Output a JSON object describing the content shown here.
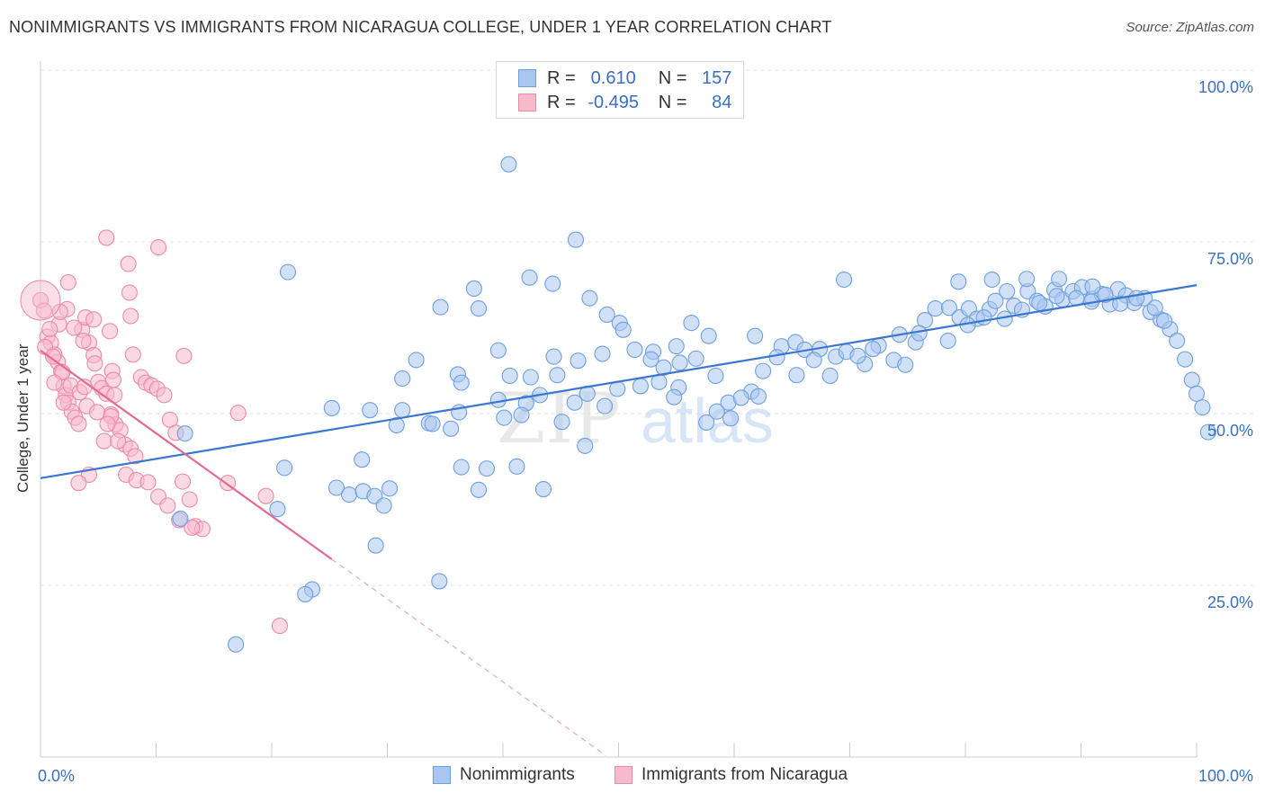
{
  "title": "NONIMMIGRANTS VS IMMIGRANTS FROM NICARAGUA COLLEGE, UNDER 1 YEAR CORRELATION CHART",
  "source": "Source: ZipAtlas.com",
  "watermark": {
    "zip": "ZIP",
    "atlas": "atlas"
  },
  "legend_top": {
    "rows": [
      {
        "r_label": "R =",
        "r_value": "0.610",
        "n_label": "N =",
        "n_value": "157"
      },
      {
        "r_label": "R =",
        "r_value": "-0.495",
        "n_label": "N =",
        "n_value": "84"
      }
    ]
  },
  "legend_bottom": [
    "Nonimmigrants",
    "Immigrants from Nicaragua"
  ],
  "colors": {
    "blue_fill": "#a9c6ef",
    "blue_stroke": "#6f9fe0",
    "blue_line": "#3a77d1",
    "pink_fill": "#f7b9cc",
    "pink_stroke": "#ec8aa8",
    "pink_line": "#e06b93",
    "grid": "#e1e1e1",
    "tick_text": "#3a6fc4"
  },
  "chart_data": {
    "type": "scatter",
    "title": "NONIMMIGRANTS VS IMMIGRANTS FROM NICARAGUA COLLEGE, UNDER 1 YEAR CORRELATION CHART",
    "xlabel": "",
    "ylabel": "College, Under 1 year",
    "xlim": [
      0,
      100
    ],
    "ylim": [
      0,
      100
    ],
    "x_tick_labels": [
      "0.0%",
      "100.0%"
    ],
    "y_tick_labels": [
      "100.0%",
      "75.0%",
      "50.0%",
      "25.0%"
    ],
    "y_ticks": [
      100,
      75,
      50,
      25
    ],
    "grid": true,
    "legend_position": "top-center",
    "series": [
      {
        "name": "Nonimmigrants",
        "r": 0.61,
        "n": 157,
        "trend": {
          "x0": 0,
          "y0": 40.6,
          "x1": 100,
          "y1": 68.7,
          "dashed_to_x": 100
        },
        "points": [
          [
            40.5,
            86.3
          ],
          [
            46.3,
            75.3
          ],
          [
            21.4,
            70.6
          ],
          [
            37.5,
            68.2
          ],
          [
            42.3,
            69.8
          ],
          [
            44.3,
            68.9
          ],
          [
            47.5,
            66.8
          ],
          [
            49.0,
            64.4
          ],
          [
            50.1,
            63.2
          ],
          [
            34.6,
            65.5
          ],
          [
            37.9,
            65.3
          ],
          [
            32.5,
            57.8
          ],
          [
            31.3,
            55.1
          ],
          [
            36.1,
            55.7
          ],
          [
            36.4,
            54.5
          ],
          [
            39.6,
            59.2
          ],
          [
            40.6,
            55.5
          ],
          [
            42.4,
            55.3
          ],
          [
            44.4,
            58.3
          ],
          [
            46.5,
            57.7
          ],
          [
            48.6,
            58.7
          ],
          [
            50.4,
            62.2
          ],
          [
            51.4,
            59.3
          ],
          [
            53.0,
            59.0
          ],
          [
            55.3,
            57.4
          ],
          [
            56.7,
            58.0
          ],
          [
            58.4,
            55.5
          ],
          [
            59.5,
            51.6
          ],
          [
            61.5,
            53.2
          ],
          [
            62.5,
            56.2
          ],
          [
            64.1,
            59.8
          ],
          [
            65.3,
            60.4
          ],
          [
            66.1,
            59.3
          ],
          [
            67.4,
            59.4
          ],
          [
            68.8,
            58.3
          ],
          [
            69.7,
            59.0
          ],
          [
            71.3,
            57.2
          ],
          [
            72.5,
            59.9
          ],
          [
            73.8,
            57.8
          ],
          [
            74.3,
            61.5
          ],
          [
            75.7,
            60.4
          ],
          [
            76.5,
            63.6
          ],
          [
            77.4,
            65.3
          ],
          [
            78.6,
            65.4
          ],
          [
            79.5,
            64.0
          ],
          [
            80.3,
            65.3
          ],
          [
            81.0,
            63.8
          ],
          [
            82.1,
            65.2
          ],
          [
            82.6,
            66.4
          ],
          [
            83.6,
            67.8
          ],
          [
            84.2,
            65.7
          ],
          [
            85.4,
            67.8
          ],
          [
            86.2,
            66.4
          ],
          [
            86.9,
            65.6
          ],
          [
            87.7,
            68.0
          ],
          [
            88.4,
            66.6
          ],
          [
            89.3,
            67.8
          ],
          [
            90.1,
            68.4
          ],
          [
            91.0,
            66.7
          ],
          [
            91.8,
            67.4
          ],
          [
            92.5,
            65.9
          ],
          [
            93.2,
            68.1
          ],
          [
            93.9,
            67.2
          ],
          [
            94.6,
            66.1
          ],
          [
            95.5,
            66.8
          ],
          [
            96.0,
            64.8
          ],
          [
            96.9,
            63.7
          ],
          [
            97.7,
            62.3
          ],
          [
            98.3,
            60.6
          ],
          [
            99.0,
            57.9
          ],
          [
            99.6,
            54.9
          ],
          [
            100.0,
            52.9
          ],
          [
            100.5,
            50.9
          ],
          [
            101.0,
            47.3
          ],
          [
            69.5,
            69.5
          ],
          [
            79.4,
            69.2
          ],
          [
            82.3,
            69.5
          ],
          [
            85.3,
            69.6
          ],
          [
            88.1,
            69.6
          ],
          [
            91.0,
            68.5
          ],
          [
            61.8,
            61.3
          ],
          [
            57.8,
            61.3
          ],
          [
            55.0,
            59.8
          ],
          [
            51.9,
            54.0
          ],
          [
            49.9,
            53.6
          ],
          [
            47.3,
            52.9
          ],
          [
            44.7,
            55.6
          ],
          [
            42.0,
            51.5
          ],
          [
            39.6,
            52.0
          ],
          [
            36.2,
            50.2
          ],
          [
            33.6,
            48.6
          ],
          [
            31.3,
            50.5
          ],
          [
            28.5,
            50.5
          ],
          [
            25.2,
            50.8
          ],
          [
            21.1,
            42.1
          ],
          [
            20.5,
            36.1
          ],
          [
            25.6,
            39.2
          ],
          [
            26.7,
            38.2
          ],
          [
            27.9,
            38.7
          ],
          [
            28.9,
            38.0
          ],
          [
            29.7,
            36.6
          ],
          [
            30.2,
            39.1
          ],
          [
            34.5,
            25.6
          ],
          [
            29.0,
            30.8
          ],
          [
            23.5,
            24.4
          ],
          [
            22.9,
            23.7
          ],
          [
            16.9,
            16.4
          ],
          [
            12.1,
            34.7
          ],
          [
            12.5,
            47.1
          ],
          [
            41.2,
            42.3
          ],
          [
            36.4,
            42.2
          ],
          [
            37.9,
            38.9
          ],
          [
            43.5,
            39.0
          ],
          [
            46.2,
            51.6
          ],
          [
            47.1,
            45.3
          ],
          [
            52.8,
            57.9
          ],
          [
            53.9,
            56.7
          ],
          [
            55.2,
            53.8
          ],
          [
            57.6,
            48.7
          ],
          [
            58.5,
            50.3
          ],
          [
            59.7,
            49.3
          ],
          [
            60.6,
            52.3
          ],
          [
            62.1,
            52.5
          ],
          [
            63.7,
            58.2
          ],
          [
            65.4,
            55.6
          ],
          [
            66.9,
            57.8
          ],
          [
            68.3,
            55.5
          ],
          [
            70.7,
            58.4
          ],
          [
            72.0,
            59.4
          ],
          [
            74.8,
            57.1
          ],
          [
            76.0,
            61.7
          ],
          [
            78.5,
            60.6
          ],
          [
            80.2,
            62.9
          ],
          [
            81.6,
            64.0
          ],
          [
            83.4,
            63.8
          ],
          [
            84.9,
            65.1
          ],
          [
            86.4,
            66.1
          ],
          [
            87.9,
            67.1
          ],
          [
            89.6,
            66.8
          ],
          [
            90.9,
            66.3
          ],
          [
            92.1,
            67.3
          ],
          [
            93.4,
            66.0
          ],
          [
            94.8,
            66.8
          ],
          [
            96.4,
            65.4
          ],
          [
            97.2,
            63.5
          ],
          [
            56.3,
            63.2
          ],
          [
            53.5,
            54.6
          ],
          [
            54.8,
            52.4
          ],
          [
            45.1,
            48.8
          ],
          [
            41.6,
            49.8
          ],
          [
            40.1,
            49.4
          ],
          [
            38.6,
            42.0
          ],
          [
            35.5,
            47.8
          ],
          [
            33.9,
            48.5
          ],
          [
            30.8,
            48.3
          ],
          [
            27.8,
            43.3
          ],
          [
            43.2,
            52.7
          ],
          [
            48.8,
            51.1
          ]
        ]
      },
      {
        "name": "Immigrants from Nicaragua",
        "r": -0.495,
        "n": 84,
        "trend": {
          "x0": 0,
          "y0": 59.2,
          "x1": 25.2,
          "y1": 28.8,
          "dashed_to_x": 48.9
        },
        "points": [
          [
            0.0,
            66.5
          ],
          [
            0.3,
            65.0
          ],
          [
            0.6,
            61.2
          ],
          [
            0.9,
            60.3
          ],
          [
            1.2,
            58.6
          ],
          [
            1.5,
            57.5
          ],
          [
            1.8,
            56.1
          ],
          [
            2.0,
            54.0
          ],
          [
            2.2,
            52.7
          ],
          [
            2.4,
            51.6
          ],
          [
            2.7,
            50.3
          ],
          [
            3.0,
            49.4
          ],
          [
            3.3,
            48.5
          ],
          [
            3.6,
            62.2
          ],
          [
            3.9,
            64.0
          ],
          [
            4.2,
            60.3
          ],
          [
            4.6,
            58.5
          ],
          [
            5.0,
            54.6
          ],
          [
            5.3,
            53.7
          ],
          [
            5.7,
            52.9
          ],
          [
            6.1,
            49.9
          ],
          [
            6.5,
            48.4
          ],
          [
            6.9,
            47.6
          ],
          [
            7.3,
            45.5
          ],
          [
            7.8,
            44.9
          ],
          [
            8.2,
            43.8
          ],
          [
            8.7,
            55.3
          ],
          [
            9.1,
            54.5
          ],
          [
            9.6,
            54.1
          ],
          [
            10.1,
            53.6
          ],
          [
            10.7,
            52.7
          ],
          [
            11.2,
            49.1
          ],
          [
            11.7,
            47.2
          ],
          [
            12.3,
            40.1
          ],
          [
            12.9,
            37.5
          ],
          [
            13.4,
            33.6
          ],
          [
            14.0,
            33.2
          ],
          [
            6.1,
            49.6
          ],
          [
            5.5,
            46.0
          ],
          [
            4.2,
            41.1
          ],
          [
            3.3,
            39.9
          ],
          [
            2.9,
            62.5
          ],
          [
            2.3,
            65.2
          ],
          [
            1.6,
            63.0
          ],
          [
            0.8,
            62.3
          ],
          [
            0.4,
            59.7
          ],
          [
            1.1,
            58.3
          ],
          [
            1.9,
            56.0
          ],
          [
            2.6,
            54.1
          ],
          [
            3.4,
            53.1
          ],
          [
            4.0,
            51.1
          ],
          [
            4.9,
            50.2
          ],
          [
            5.8,
            48.5
          ],
          [
            6.7,
            46.0
          ],
          [
            7.4,
            41.1
          ],
          [
            8.3,
            40.3
          ],
          [
            9.3,
            40.0
          ],
          [
            10.2,
            37.9
          ],
          [
            11.0,
            36.6
          ],
          [
            12.0,
            34.5
          ],
          [
            13.1,
            33.4
          ],
          [
            5.7,
            75.6
          ],
          [
            7.6,
            71.8
          ],
          [
            10.2,
            74.2
          ],
          [
            7.7,
            67.6
          ],
          [
            2.4,
            69.1
          ],
          [
            1.7,
            64.8
          ],
          [
            3.7,
            60.6
          ],
          [
            4.7,
            57.3
          ],
          [
            6.2,
            56.2
          ],
          [
            6.3,
            54.9
          ],
          [
            3.8,
            53.9
          ],
          [
            2.0,
            51.6
          ],
          [
            1.2,
            54.5
          ],
          [
            6.4,
            52.7
          ],
          [
            7.8,
            64.2
          ],
          [
            12.4,
            58.4
          ],
          [
            17.1,
            50.1
          ],
          [
            16.2,
            39.9
          ],
          [
            19.5,
            38.0
          ],
          [
            20.7,
            19.1
          ],
          [
            4.6,
            63.7
          ],
          [
            6.0,
            62.0
          ],
          [
            8.0,
            58.6
          ]
        ]
      }
    ]
  }
}
